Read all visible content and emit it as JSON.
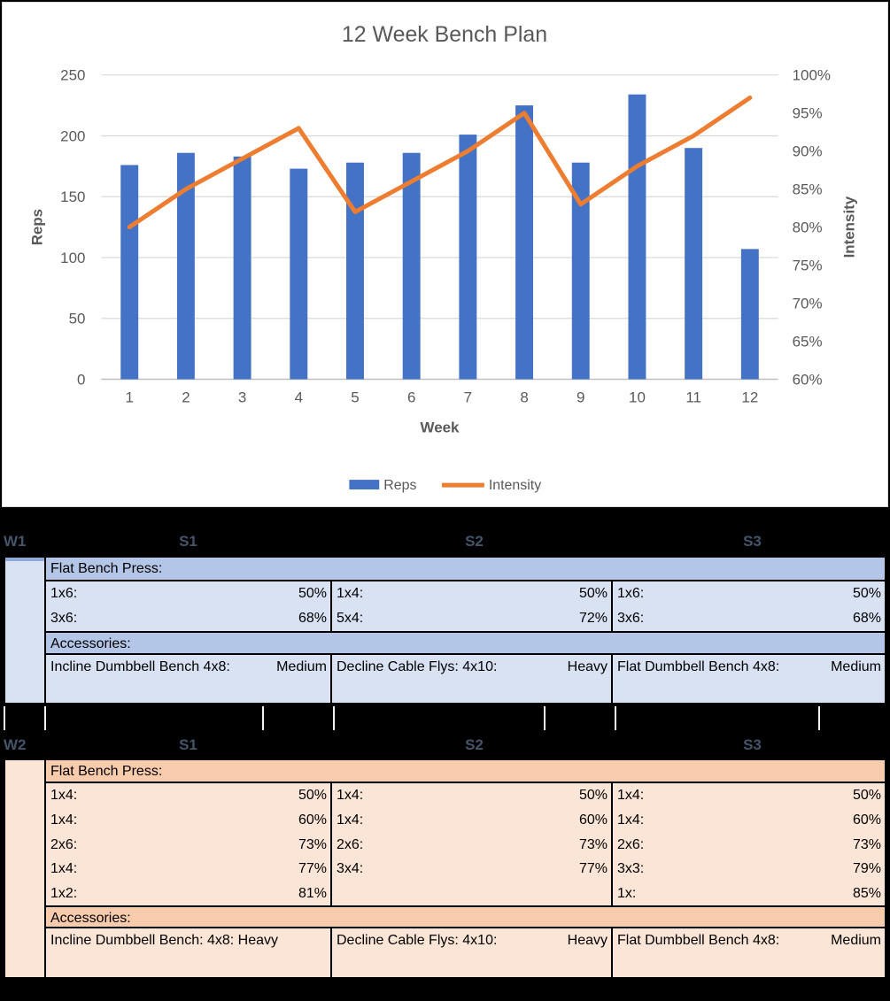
{
  "chart_data": {
    "type": "bar",
    "title": "12 Week Bench Plan",
    "xlabel": "Week",
    "categories": [
      "1",
      "2",
      "3",
      "4",
      "5",
      "6",
      "7",
      "8",
      "9",
      "10",
      "11",
      "12"
    ],
    "series": [
      {
        "name": "Reps",
        "render": "bar",
        "axis": "left",
        "color": "#4472C4",
        "values": [
          176,
          186,
          183,
          173,
          178,
          186,
          201,
          225,
          178,
          234,
          190,
          107
        ]
      },
      {
        "name": "Intensity",
        "render": "line",
        "axis": "right",
        "color": "#ED7D31",
        "unit": "%",
        "values": [
          80,
          85,
          89,
          93,
          82,
          86,
          90,
          95,
          83,
          88,
          92,
          97
        ]
      }
    ],
    "left_axis": {
      "label": "Reps",
      "min": 0,
      "max": 250,
      "step": 50,
      "tick_labels": [
        "0",
        "50",
        "100",
        "150",
        "200",
        "250"
      ]
    },
    "right_axis": {
      "label": "Intensity",
      "min": 60,
      "max": 100,
      "step": 5,
      "tick_labels": [
        "60%",
        "65%",
        "70%",
        "75%",
        "80%",
        "85%",
        "90%",
        "95%",
        "100%"
      ]
    },
    "legend": {
      "position": "bottom",
      "entries": [
        "Reps",
        "Intensity"
      ]
    },
    "grid": true,
    "colors": {
      "title_text": "#595959",
      "axis_text": "#595959",
      "gridline": "#D9D9D9",
      "baseline": "#BFBFBF",
      "chart_bg": "#FFFFFF"
    }
  },
  "week_tables": [
    {
      "week_label": "W1",
      "session_labels": [
        "S1",
        "S2",
        "S3"
      ],
      "colors": {
        "header_text": "#44546A",
        "section_bg": "#B4C6E7",
        "row_bg": "#D9E2F3",
        "cap": "#8EAADB"
      },
      "exercise_header": "Flat Bench Press:",
      "set_rows": [
        [
          [
            "1x6:",
            "50%"
          ],
          [
            "1x4:",
            "50%"
          ],
          [
            "1x6:",
            "50%"
          ]
        ],
        [
          [
            "3x6:",
            "68%"
          ],
          [
            "5x4:",
            "72%"
          ],
          [
            "3x6:",
            "68%"
          ]
        ]
      ],
      "accessories_header": "Accessories:",
      "accessory_row": [
        [
          "Incline Dumbbell Bench 4x8:",
          "Medium"
        ],
        [
          "Decline Cable Flys: 4x10:",
          "Heavy"
        ],
        [
          "Flat Dumbbell Bench 4x8:",
          "Medium"
        ]
      ]
    },
    {
      "week_label": "W2",
      "session_labels": [
        "S1",
        "S2",
        "S3"
      ],
      "colors": {
        "header_text": "#44546A",
        "section_bg": "#F8CBAD",
        "row_bg": "#FBE5D6",
        "cap": ""
      },
      "exercise_header": "Flat Bench Press:",
      "set_rows": [
        [
          [
            "1x4:",
            "50%"
          ],
          [
            "1x4:",
            "50%"
          ],
          [
            "1x4:",
            "50%"
          ]
        ],
        [
          [
            "1x4:",
            "60%"
          ],
          [
            "1x4:",
            "60%"
          ],
          [
            "1x4:",
            "60%"
          ]
        ],
        [
          [
            "2x6:",
            "73%"
          ],
          [
            "2x6:",
            "73%"
          ],
          [
            "2x6:",
            "73%"
          ]
        ],
        [
          [
            "1x4:",
            "77%"
          ],
          [
            "3x4:",
            "77%"
          ],
          [
            "3x3:",
            "79%"
          ]
        ],
        [
          [
            "1x2:",
            "81%"
          ],
          [
            "",
            ""
          ],
          [
            "1x:",
            "85%"
          ]
        ]
      ],
      "accessories_header": "Accessories:",
      "accessory_row": [
        [
          "Incline Dumbbell Bench: 4x8: Heavy",
          ""
        ],
        [
          "Decline Cable Flys: 4x10:",
          "Heavy"
        ],
        [
          "Flat Dumbbell Bench 4x8:",
          "Medium"
        ]
      ]
    }
  ]
}
